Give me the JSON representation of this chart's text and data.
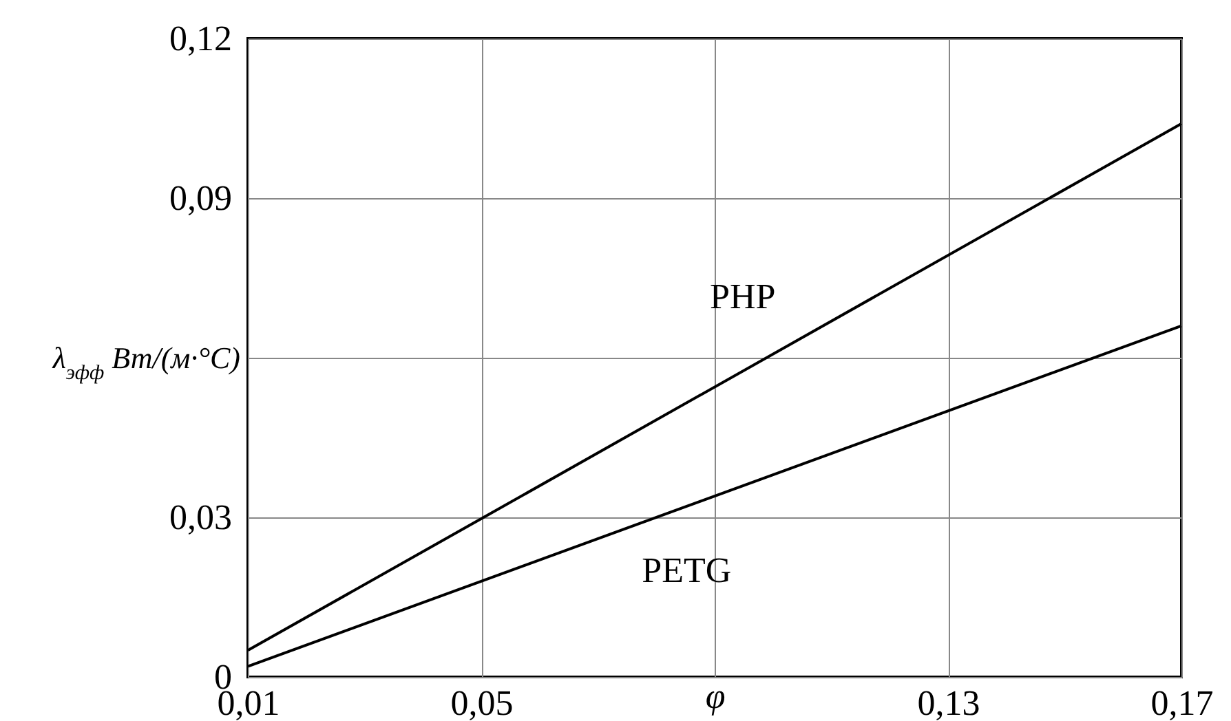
{
  "chart_data": {
    "type": "line",
    "xlabel": "φ",
    "ylabel": "λ$_{эфф}$ Вт/(м·°C)",
    "xlim": [
      0.01,
      0.17
    ],
    "xticks": [
      {
        "value": 0.01,
        "label": "0,01"
      },
      {
        "value": 0.05,
        "label": "0,05"
      },
      {
        "value": 0.09,
        "label": null
      },
      {
        "value": 0.13,
        "label": "0,13"
      },
      {
        "value": 0.17,
        "label": "0,17"
      }
    ],
    "ylim": [
      0,
      0.12
    ],
    "yticks": [
      {
        "value": 0,
        "label": "0"
      },
      {
        "value": 0.03,
        "label": "0,03"
      },
      {
        "value": 0.06,
        "label": null
      },
      {
        "value": 0.09,
        "label": "0,09"
      },
      {
        "value": 0.12,
        "label": "0,12"
      }
    ],
    "x": [
      0.01,
      0.17
    ],
    "grid": true,
    "legend": false,
    "series": [
      {
        "name": "PHP",
        "color": "#000000",
        "values": [
          0.005,
          0.104
        ]
      },
      {
        "name": "PETG",
        "color": "#000000",
        "values": [
          0.002,
          0.066
        ]
      }
    ]
  }
}
